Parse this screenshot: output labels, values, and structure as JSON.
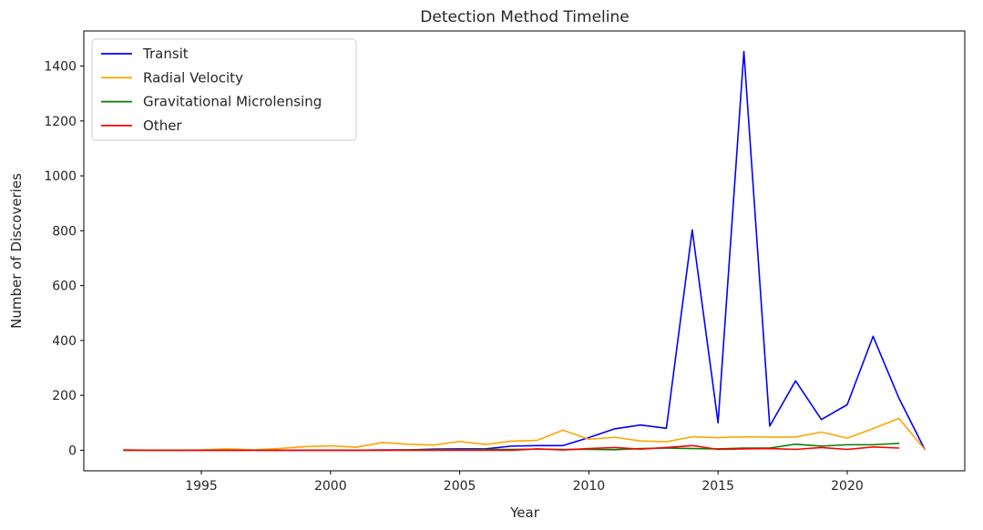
{
  "chart_data": {
    "type": "line",
    "title": "Detection Method Timeline",
    "xlabel": "Year",
    "ylabel": "Number of Discoveries",
    "xlim": [
      1990.45,
      2024.55
    ],
    "ylim": [
      -75,
      1528
    ],
    "xticks": [
      1995,
      2000,
      2005,
      2010,
      2015,
      2020
    ],
    "yticks": [
      0,
      200,
      400,
      600,
      800,
      1000,
      1200,
      1400
    ],
    "grid": false,
    "legend_position": "top-left",
    "series": [
      {
        "name": "Transit",
        "color": "#0000ff",
        "x": [
          1992,
          1993,
          1994,
          1995,
          1996,
          1997,
          1998,
          1999,
          2000,
          2001,
          2002,
          2003,
          2004,
          2005,
          2006,
          2007,
          2008,
          2009,
          2010,
          2011,
          2012,
          2013,
          2014,
          2015,
          2016,
          2017,
          2018,
          2019,
          2020,
          2021,
          2022,
          2023
        ],
        "y": [
          0,
          0,
          0,
          0,
          0,
          0,
          0,
          0,
          0,
          0,
          1,
          1,
          4,
          5,
          5,
          15,
          17,
          17,
          46,
          78,
          92,
          80,
          803,
          100,
          1453,
          88,
          253,
          112,
          166,
          415,
          190,
          3
        ]
      },
      {
        "name": "Radial Velocity",
        "color": "#ffa500",
        "x": [
          1992,
          1993,
          1994,
          1995,
          1996,
          1997,
          1998,
          1999,
          2000,
          2001,
          2002,
          2003,
          2004,
          2005,
          2006,
          2007,
          2008,
          2009,
          2010,
          2011,
          2012,
          2013,
          2014,
          2015,
          2016,
          2017,
          2018,
          2019,
          2020,
          2021,
          2022,
          2023
        ],
        "y": [
          0,
          0,
          0,
          1,
          5,
          1,
          6,
          13,
          16,
          11,
          28,
          22,
          19,
          32,
          21,
          33,
          36,
          73,
          40,
          47,
          34,
          31,
          49,
          46,
          49,
          48,
          48,
          66,
          44,
          79,
          116,
          3
        ]
      },
      {
        "name": "Gravitational Microlensing",
        "color": "#008000",
        "x": [
          1992,
          1993,
          1994,
          1995,
          1996,
          1997,
          1998,
          1999,
          2000,
          2001,
          2002,
          2003,
          2004,
          2005,
          2006,
          2007,
          2008,
          2009,
          2010,
          2011,
          2012,
          2013,
          2014,
          2015,
          2016,
          2017,
          2018,
          2019,
          2020,
          2021,
          2022
        ],
        "y": [
          0,
          0,
          0,
          0,
          0,
          0,
          0,
          0,
          0,
          0,
          0,
          1,
          2,
          2,
          3,
          3,
          4,
          3,
          3,
          2,
          6,
          8,
          6,
          5,
          8,
          8,
          22,
          15,
          20,
          20,
          25
        ]
      },
      {
        "name": "Other",
        "color": "#ff0000",
        "x": [
          1992,
          1993,
          1994,
          1995,
          1996,
          1997,
          1998,
          1999,
          2000,
          2001,
          2002,
          2003,
          2004,
          2005,
          2006,
          2007,
          2008,
          2009,
          2010,
          2011,
          2012,
          2013,
          2014,
          2015,
          2016,
          2017,
          2018,
          2019,
          2020,
          2021,
          2022
        ],
        "y": [
          1,
          0,
          0,
          0,
          0,
          0,
          0,
          0,
          0,
          0,
          0,
          0,
          0,
          0,
          0,
          0,
          5,
          1,
          6,
          10,
          4,
          10,
          17,
          3,
          5,
          6,
          3,
          10,
          3,
          12,
          8
        ]
      }
    ]
  }
}
